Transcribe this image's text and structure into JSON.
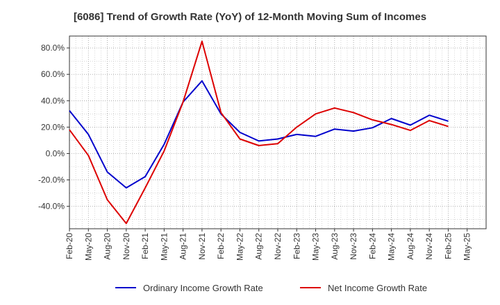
{
  "chart_data": {
    "type": "line",
    "title": "[6086]  Trend of Growth Rate (YoY) of 12-Month Moving Sum of Incomes",
    "x": [
      "Feb-20",
      "May-20",
      "Aug-20",
      "Nov-20",
      "Feb-21",
      "May-21",
      "Aug-21",
      "Nov-21",
      "Feb-22",
      "May-22",
      "Aug-22",
      "Nov-22",
      "Feb-23",
      "May-23",
      "Aug-23",
      "Nov-23",
      "Feb-24",
      "May-24",
      "Aug-24",
      "Nov-24",
      "Feb-25",
      "May-25"
    ],
    "yticks": [
      "80.0%",
      "60.0%",
      "40.0%",
      "20.0%",
      "0.0%",
      "-20.0%",
      "-40.0%"
    ],
    "ytick_values": [
      80,
      60,
      40,
      20,
      0,
      -20,
      -40
    ],
    "ylim": [
      -57,
      89
    ],
    "grid": true,
    "legend_position": "bottom",
    "series": [
      {
        "name": "Ordinary Income Growth Rate",
        "color": "#0000cc",
        "values": [
          32.5,
          14.5,
          -14,
          -26,
          -17.5,
          7,
          39,
          55,
          30,
          16,
          9.5,
          11,
          14.5,
          13,
          18.5,
          17,
          19.5,
          26.5,
          21.5,
          29,
          24.5,
          null
        ]
      },
      {
        "name": "Net Income Growth Rate",
        "color": "#dd0000",
        "values": [
          18,
          -1.5,
          -35,
          -53,
          -26,
          2,
          39,
          85,
          31,
          11,
          6,
          7.5,
          20,
          30,
          34.5,
          31,
          25.5,
          22,
          17.5,
          25,
          20.5,
          null
        ]
      }
    ]
  }
}
